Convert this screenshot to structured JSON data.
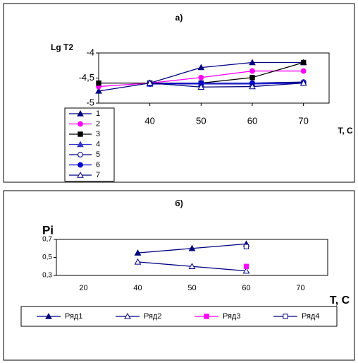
{
  "chart_data": [
    {
      "type": "line",
      "title": "а)",
      "y_label": "Lg T2",
      "x_label": "T, C",
      "x": [
        30,
        40,
        50,
        60,
        70
      ],
      "xlim": [
        30,
        75
      ],
      "xticks": [
        40,
        50,
        60,
        70
      ],
      "ylim": [
        -5,
        -4
      ],
      "yticks": [
        -5,
        {
          "value": -4.5,
          "label": "-4,5"
        },
        -4
      ],
      "legend": "bottom-left",
      "series": [
        {
          "name": "1",
          "color": "#000080",
          "marker": "triangle",
          "values": [
            -4.76,
            -4.6,
            -4.29,
            -4.19,
            -4.19
          ]
        },
        {
          "name": "2",
          "color": "#ff00ff",
          "marker": "circle",
          "values": [
            -4.67,
            -4.6,
            -4.49,
            -4.36,
            -4.36
          ]
        },
        {
          "name": "3",
          "color": "#000000",
          "marker": "square",
          "values": [
            -4.6,
            -4.6,
            -4.6,
            -4.49,
            -4.19
          ]
        },
        {
          "name": "4",
          "color": "#3333cc",
          "marker": "triangle",
          "values": [
            null,
            -4.62,
            -4.62,
            -4.62,
            -4.6
          ]
        },
        {
          "name": "5",
          "color": "#000080",
          "marker": "circle-open",
          "values": [
            null,
            -4.6,
            -4.6,
            -4.6,
            -4.58
          ]
        },
        {
          "name": "6",
          "color": "#0000cc",
          "marker": "circle",
          "values": [
            null,
            -4.62,
            -4.6,
            -4.6,
            -4.6
          ]
        },
        {
          "name": "7",
          "color": "#000080",
          "marker": "triangle-open",
          "values": [
            null,
            -4.6,
            -4.68,
            -4.67,
            -4.6
          ]
        }
      ]
    },
    {
      "type": "line",
      "title": "б)",
      "y_label": "Pi",
      "x_label": "T, C",
      "categories": [
        20,
        40,
        50,
        60,
        70
      ],
      "ylim": [
        0.3,
        0.7
      ],
      "yticks": [
        {
          "value": 0.3,
          "label": "0,3"
        },
        {
          "value": 0.5,
          "label": "0,5"
        },
        {
          "value": 0.7,
          "label": "0,7"
        }
      ],
      "legend": "bottom",
      "series": [
        {
          "name": "Ряд1",
          "color": "#000080",
          "marker": "triangle",
          "values": [
            null,
            0.55,
            0.6,
            0.65,
            null
          ]
        },
        {
          "name": "Ряд2",
          "color": "#000080",
          "marker": "triangle-open",
          "values": [
            null,
            0.45,
            0.4,
            0.35,
            null
          ]
        },
        {
          "name": "Ряд3",
          "color": "#ff00ff",
          "marker": "square",
          "values": [
            null,
            null,
            null,
            0.4,
            null
          ]
        },
        {
          "name": "Ряд4",
          "color": "#000080",
          "marker": "square-open",
          "values": [
            null,
            null,
            null,
            0.62,
            null
          ]
        }
      ]
    }
  ]
}
